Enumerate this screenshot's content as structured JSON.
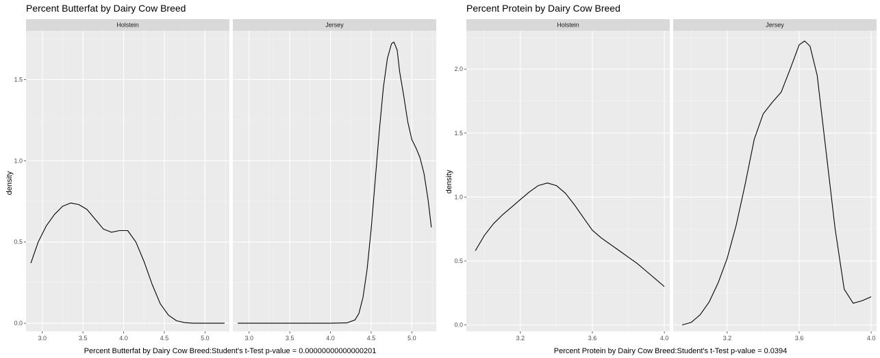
{
  "chart_data": [
    {
      "type": "line",
      "title": "Percent Butterfat by Dairy Cow Breed",
      "xlabel": "Percent Butterfat by Dairy Cow Breed:Student's t-Test p-value = 0.00000000000000201",
      "ylabel": "density",
      "xlim": [
        2.8,
        5.3
      ],
      "ylim": [
        -0.05,
        1.8
      ],
      "xticks": [
        3.0,
        3.5,
        4.0,
        4.5,
        5.0
      ],
      "xtick_labels": [
        "3.0",
        "3.5",
        "4.0",
        "4.5",
        "5.0"
      ],
      "yticks": [
        0.0,
        0.5,
        1.0,
        1.5
      ],
      "ytick_labels": [
        "0.0",
        "0.5",
        "1.0",
        "1.5"
      ],
      "grid": true,
      "panels": [
        {
          "name": "Holstein",
          "x": [
            2.86,
            2.95,
            3.05,
            3.15,
            3.25,
            3.35,
            3.45,
            3.55,
            3.65,
            3.75,
            3.85,
            3.95,
            4.05,
            4.15,
            4.25,
            4.35,
            4.45,
            4.55,
            4.65,
            4.75,
            4.85,
            5.0,
            5.1,
            5.24
          ],
          "y": [
            0.37,
            0.5,
            0.6,
            0.67,
            0.72,
            0.74,
            0.73,
            0.7,
            0.64,
            0.58,
            0.56,
            0.57,
            0.57,
            0.5,
            0.38,
            0.24,
            0.12,
            0.05,
            0.015,
            0.004,
            0.0,
            0.0,
            0.0,
            0.0
          ]
        },
        {
          "name": "Jersey",
          "x": [
            2.86,
            3.2,
            3.6,
            4.0,
            4.2,
            4.3,
            4.35,
            4.4,
            4.45,
            4.5,
            4.55,
            4.6,
            4.65,
            4.7,
            4.75,
            4.78,
            4.82,
            4.85,
            4.9,
            4.95,
            5.0,
            5.05,
            5.1,
            5.15,
            5.2,
            5.24
          ],
          "y": [
            0.0,
            0.0,
            0.0,
            0.0,
            0.002,
            0.02,
            0.06,
            0.16,
            0.33,
            0.58,
            0.88,
            1.18,
            1.45,
            1.63,
            1.72,
            1.73,
            1.68,
            1.55,
            1.4,
            1.24,
            1.13,
            1.08,
            1.02,
            0.92,
            0.76,
            0.59
          ]
        }
      ]
    },
    {
      "type": "line",
      "title": "Percent Protein by Dairy Cow Breed",
      "xlabel": "Percent Protein by Dairy Cow Breed:Student's t-Test p-value = 0.0394",
      "ylabel": "density",
      "xlim": [
        2.9,
        4.03
      ],
      "ylim": [
        -0.05,
        2.3
      ],
      "xticks": [
        3.2,
        3.6,
        4.0
      ],
      "xtick_labels": [
        "3.2",
        "3.6",
        "4.0"
      ],
      "yticks": [
        0.0,
        0.5,
        1.0,
        1.5,
        2.0
      ],
      "ytick_labels": [
        "0.0",
        "0.5",
        "1.0",
        "1.5",
        "2.0"
      ],
      "grid": true,
      "panels": [
        {
          "name": "Holstein",
          "x": [
            2.95,
            3.0,
            3.05,
            3.1,
            3.15,
            3.2,
            3.25,
            3.3,
            3.35,
            3.4,
            3.45,
            3.5,
            3.55,
            3.6,
            3.65,
            3.7,
            3.75,
            3.8,
            3.85,
            3.9,
            3.95,
            4.0
          ],
          "y": [
            0.58,
            0.7,
            0.79,
            0.86,
            0.92,
            0.98,
            1.04,
            1.09,
            1.11,
            1.09,
            1.03,
            0.94,
            0.84,
            0.74,
            0.68,
            0.63,
            0.58,
            0.53,
            0.48,
            0.42,
            0.36,
            0.3
          ]
        },
        {
          "name": "Jersey",
          "x": [
            2.95,
            3.0,
            3.05,
            3.1,
            3.15,
            3.2,
            3.25,
            3.3,
            3.35,
            3.4,
            3.45,
            3.5,
            3.55,
            3.6,
            3.63,
            3.66,
            3.7,
            3.75,
            3.8,
            3.85,
            3.9,
            3.95,
            4.0
          ],
          "y": [
            0.0,
            0.02,
            0.08,
            0.18,
            0.33,
            0.52,
            0.78,
            1.1,
            1.45,
            1.65,
            1.74,
            1.82,
            2.0,
            2.19,
            2.22,
            2.18,
            1.95,
            1.35,
            0.75,
            0.28,
            0.17,
            0.19,
            0.22
          ]
        }
      ]
    }
  ]
}
